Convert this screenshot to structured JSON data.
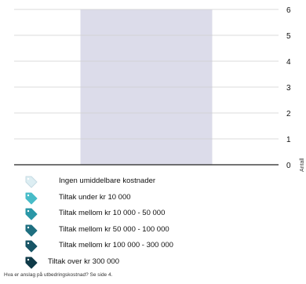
{
  "chart_data": {
    "type": "bar",
    "categories": [
      ""
    ],
    "values": [
      6
    ],
    "xlabel": "",
    "ylabel": "Antall",
    "ylim": [
      0,
      6
    ],
    "yticks": [
      "0",
      "1",
      "2",
      "3",
      "4",
      "5",
      "6"
    ],
    "grid": true,
    "bar_color": "#dcdcea"
  },
  "legend": {
    "items": [
      {
        "label": "Ingen umiddelbare kostnader",
        "color": "#ddeef3",
        "icon": "tag-icon-empty"
      },
      {
        "label": "Tiltak under kr 10 000",
        "color": "#48bcc8",
        "icon": "tag-icon-1"
      },
      {
        "label": "Tiltak mellom kr 10 000 - 50 000",
        "color": "#2a97a7",
        "icon": "tag-icon-2"
      },
      {
        "label": "Tiltak mellom kr 50 000 - 100 000",
        "color": "#1f6f80",
        "icon": "tag-icon-3"
      },
      {
        "label": "Tiltak mellom kr 100 000 - 300 000",
        "color": "#185566",
        "icon": "tag-icon-4"
      },
      {
        "label": "Tiltak over kr  300 000",
        "color": "#0f3a48",
        "icon": "tag-icon-5"
      }
    ]
  },
  "footnote": "Hva er anslag på utbedringskostnad? Se side 4."
}
